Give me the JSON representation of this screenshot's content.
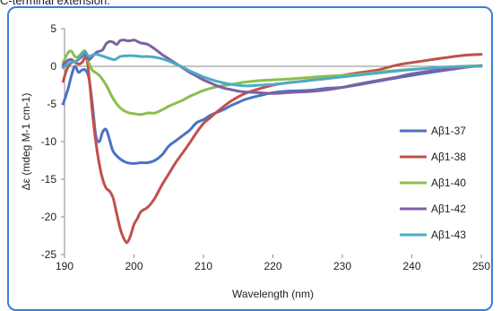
{
  "caption": "C-terminal extension.",
  "chart_data": {
    "type": "line",
    "title": "",
    "xlabel": "Wavelength (nm)",
    "ylabel": "Δε (mdeg M-1 cm-1)",
    "xlim": [
      190,
      250
    ],
    "ylim": [
      -25,
      5
    ],
    "xticks": [
      190,
      200,
      210,
      220,
      230,
      240,
      250
    ],
    "yticks": [
      5,
      0,
      -5,
      -10,
      -15,
      -20,
      -25
    ],
    "grid": false,
    "legend_position": "right",
    "series": [
      {
        "name": "Aβ1-37",
        "color": "#4a72c2",
        "points": [
          [
            189.8,
            -5
          ],
          [
            190.5,
            -3
          ],
          [
            191,
            -1.2
          ],
          [
            191.5,
            0
          ],
          [
            192,
            -0.8
          ],
          [
            192.5,
            -0.5
          ],
          [
            193,
            -0.5
          ],
          [
            193.5,
            -1.5
          ],
          [
            194,
            -5
          ],
          [
            194.5,
            -9.2
          ],
          [
            195,
            -10
          ],
          [
            195.5,
            -8.7
          ],
          [
            196,
            -8.4
          ],
          [
            196.5,
            -9.8
          ],
          [
            197,
            -11.3
          ],
          [
            198,
            -12.3
          ],
          [
            199,
            -12.8
          ],
          [
            200,
            -12.9
          ],
          [
            201,
            -12.8
          ],
          [
            202,
            -12.8
          ],
          [
            203,
            -12.5
          ],
          [
            204,
            -11.8
          ],
          [
            205,
            -10.6
          ],
          [
            206,
            -9.9
          ],
          [
            207,
            -9.2
          ],
          [
            208,
            -8.5
          ],
          [
            209,
            -7.5
          ],
          [
            210,
            -7.1
          ],
          [
            211,
            -6.5
          ],
          [
            212,
            -6.1
          ],
          [
            213,
            -5.7
          ],
          [
            214,
            -5.2
          ],
          [
            215,
            -4.8
          ],
          [
            216,
            -4.4
          ],
          [
            218,
            -3.9
          ],
          [
            220,
            -3.5
          ],
          [
            222,
            -3.3
          ],
          [
            225,
            -3.2
          ],
          [
            228,
            -2.9
          ],
          [
            230,
            -2.8
          ],
          [
            232,
            -2.5
          ],
          [
            235,
            -2.0
          ],
          [
            238,
            -1.5
          ],
          [
            240,
            -1.2
          ],
          [
            242,
            -0.9
          ],
          [
            245,
            -0.5
          ],
          [
            248,
            -0.1
          ],
          [
            250,
            0.1
          ]
        ]
      },
      {
        "name": "Aβ1-38",
        "color": "#c0504d",
        "points": [
          [
            189.8,
            -2
          ],
          [
            190.3,
            -0.5
          ],
          [
            190.8,
            0.3
          ],
          [
            191.3,
            0.6
          ],
          [
            192,
            0.3
          ],
          [
            192.5,
            0.5
          ],
          [
            193,
            1.2
          ],
          [
            193.3,
            0.5
          ],
          [
            193.7,
            -3
          ],
          [
            194,
            -6
          ],
          [
            194.5,
            -10
          ],
          [
            195,
            -13
          ],
          [
            195.5,
            -15
          ],
          [
            196,
            -16.2
          ],
          [
            196.5,
            -16.6
          ],
          [
            197,
            -17.5
          ],
          [
            197.5,
            -19.5
          ],
          [
            198,
            -21.5
          ],
          [
            198.5,
            -22.8
          ],
          [
            199,
            -23.4
          ],
          [
            199.5,
            -22.5
          ],
          [
            200,
            -21
          ],
          [
            200.5,
            -20.2
          ],
          [
            201,
            -19.3
          ],
          [
            202,
            -18.7
          ],
          [
            203,
            -17.5
          ],
          [
            204,
            -15.8
          ],
          [
            205,
            -14.3
          ],
          [
            206,
            -12.8
          ],
          [
            207,
            -11.5
          ],
          [
            208,
            -10.2
          ],
          [
            209,
            -8.8
          ],
          [
            210,
            -7.6
          ],
          [
            211,
            -6.8
          ],
          [
            212,
            -6
          ],
          [
            214,
            -4.6
          ],
          [
            216,
            -3.6
          ],
          [
            218,
            -3.0
          ],
          [
            220,
            -2.5
          ],
          [
            222,
            -2.2
          ],
          [
            225,
            -1.9
          ],
          [
            228,
            -1.6
          ],
          [
            230,
            -1.2
          ],
          [
            232,
            -0.9
          ],
          [
            235,
            -0.5
          ],
          [
            238,
            0.2
          ],
          [
            240,
            0.5
          ],
          [
            243,
            0.9
          ],
          [
            246,
            1.3
          ],
          [
            248,
            1.5
          ],
          [
            250,
            1.6
          ]
        ]
      },
      {
        "name": "Aβ1-40",
        "color": "#8bbf4c",
        "points": [
          [
            189.8,
            0.5
          ],
          [
            190.5,
            1.8
          ],
          [
            191,
            2.0
          ],
          [
            191.5,
            1.3
          ],
          [
            192,
            1.3
          ],
          [
            192.5,
            1.8
          ],
          [
            193,
            2.0
          ],
          [
            193.5,
            0.5
          ],
          [
            194,
            -0.5
          ],
          [
            195,
            -1.2
          ],
          [
            196,
            -2.5
          ],
          [
            197,
            -4.3
          ],
          [
            198,
            -5.5
          ],
          [
            199,
            -6.1
          ],
          [
            200,
            -6.3
          ],
          [
            201,
            -6.4
          ],
          [
            202,
            -6.2
          ],
          [
            203,
            -6.2
          ],
          [
            204,
            -5.8
          ],
          [
            205,
            -5.3
          ],
          [
            206,
            -4.9
          ],
          [
            207,
            -4.5
          ],
          [
            208,
            -4.0
          ],
          [
            209,
            -3.6
          ],
          [
            210,
            -3.2
          ],
          [
            212,
            -2.7
          ],
          [
            214,
            -2.4
          ],
          [
            216,
            -2.1
          ],
          [
            218,
            -1.9
          ],
          [
            220,
            -1.8
          ],
          [
            222,
            -1.7
          ],
          [
            225,
            -1.5
          ],
          [
            228,
            -1.3
          ],
          [
            230,
            -1.2
          ],
          [
            233,
            -1.0
          ],
          [
            236,
            -0.7
          ],
          [
            240,
            -0.4
          ],
          [
            244,
            -0.2
          ],
          [
            247,
            0
          ],
          [
            250,
            0.1
          ]
        ]
      },
      {
        "name": "Aβ1-42",
        "color": "#7e60a1",
        "points": [
          [
            189.8,
            0.2
          ],
          [
            190.5,
            0.8
          ],
          [
            191,
            0.9
          ],
          [
            191.5,
            0.6
          ],
          [
            192,
            0.9
          ],
          [
            192.5,
            1.3
          ],
          [
            193,
            1.6
          ],
          [
            193.5,
            0.9
          ],
          [
            194,
            1.3
          ],
          [
            194.5,
            1.8
          ],
          [
            195,
            2.0
          ],
          [
            195.5,
            2.2
          ],
          [
            196,
            3.0
          ],
          [
            196.5,
            3.3
          ],
          [
            197,
            3.2
          ],
          [
            197.5,
            2.9
          ],
          [
            198,
            3.4
          ],
          [
            198.5,
            3.5
          ],
          [
            199,
            3.4
          ],
          [
            199.5,
            3.4
          ],
          [
            200,
            3.5
          ],
          [
            200.5,
            3.3
          ],
          [
            201,
            3.1
          ],
          [
            202,
            2.9
          ],
          [
            203,
            2.3
          ],
          [
            204,
            1.6
          ],
          [
            205,
            1.0
          ],
          [
            206,
            0.4
          ],
          [
            207,
            -0.2
          ],
          [
            208,
            -0.8
          ],
          [
            209,
            -1.3
          ],
          [
            210,
            -1.8
          ],
          [
            211,
            -2.2
          ],
          [
            212,
            -2.6
          ],
          [
            213,
            -2.9
          ],
          [
            214,
            -3.1
          ],
          [
            215,
            -3.3
          ],
          [
            216,
            -3.4
          ],
          [
            218,
            -3.5
          ],
          [
            220,
            -3.6
          ],
          [
            222,
            -3.5
          ],
          [
            224,
            -3.4
          ],
          [
            226,
            -3.3
          ],
          [
            228,
            -3.1
          ],
          [
            230,
            -2.8
          ],
          [
            232,
            -2.4
          ],
          [
            235,
            -1.9
          ],
          [
            238,
            -1.4
          ],
          [
            240,
            -1.0
          ],
          [
            243,
            -0.6
          ],
          [
            246,
            -0.3
          ],
          [
            250,
            0.1
          ]
        ]
      },
      {
        "name": "Aβ1-43",
        "color": "#4bacc6",
        "points": [
          [
            189.8,
            -0.2
          ],
          [
            190.5,
            0.3
          ],
          [
            191,
            0.6
          ],
          [
            191.5,
            0.6
          ],
          [
            192,
            1.0
          ],
          [
            192.5,
            1.6
          ],
          [
            193,
            1.9
          ],
          [
            193.5,
            1.3
          ],
          [
            194,
            1.5
          ],
          [
            194.5,
            1.6
          ],
          [
            195,
            1.5
          ],
          [
            196,
            1.2
          ],
          [
            197,
            0.9
          ],
          [
            197.5,
            1.0
          ],
          [
            198,
            1.3
          ],
          [
            199,
            1.4
          ],
          [
            200,
            1.4
          ],
          [
            201,
            1.3
          ],
          [
            202,
            1.3
          ],
          [
            203,
            1.2
          ],
          [
            204,
            1.0
          ],
          [
            205,
            0.7
          ],
          [
            206,
            0.3
          ],
          [
            207,
            -0.1
          ],
          [
            208,
            -0.6
          ],
          [
            209,
            -1.0
          ],
          [
            210,
            -1.4
          ],
          [
            212,
            -2.0
          ],
          [
            214,
            -2.4
          ],
          [
            216,
            -2.6
          ],
          [
            218,
            -2.5
          ],
          [
            220,
            -2.4
          ],
          [
            222,
            -2.2
          ],
          [
            225,
            -1.9
          ],
          [
            228,
            -1.6
          ],
          [
            230,
            -1.4
          ],
          [
            233,
            -1.1
          ],
          [
            236,
            -0.8
          ],
          [
            239,
            -0.5
          ],
          [
            242,
            -0.3
          ],
          [
            245,
            -0.1
          ],
          [
            250,
            0.0
          ]
        ]
      }
    ]
  }
}
